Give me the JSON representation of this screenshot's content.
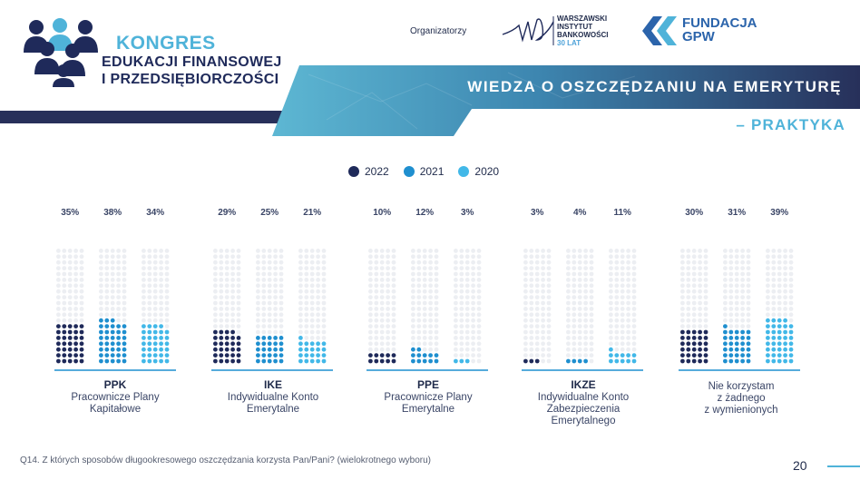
{
  "header": {
    "kongres_title": "KONGRES",
    "kongres_line1": "EDUKACJI FINANSOWEJ",
    "kongres_line2": "I PRZEDSIĘBIORCZOŚCI",
    "organizers_label": "Organizatorzy",
    "wib_line1": "WARSZAWSKI",
    "wib_line2": "INSTYTUT",
    "wib_line3": "BANKOWOŚCI",
    "wib_line4": "30 LAT",
    "gpw_line1": "FUNDACJA",
    "gpw_line2": "GPW",
    "banner_title": "WIEDZA O OSZCZĘDZANIU NA EMERYTURĘ",
    "banner_subtitle": "– PRAKTYKA"
  },
  "colors": {
    "navy": "#1f2a5a",
    "mid_blue": "#1f8fcf",
    "light_blue": "#42b8e8",
    "empty_dot": "#eceef2",
    "banner_dark": "#27305a",
    "accent": "#4fb3d9"
  },
  "chart_data": {
    "type": "waffle",
    "series": [
      {
        "name": "2022",
        "color": "#1f2a5a",
        "values": [
          35,
          29,
          10,
          3,
          30
        ]
      },
      {
        "name": "2021",
        "color": "#1f8fcf",
        "values": [
          38,
          25,
          12,
          4,
          31
        ]
      },
      {
        "name": "2020",
        "color": "#42b8e8",
        "values": [
          34,
          21,
          3,
          11,
          39
        ]
      }
    ],
    "categories": [
      {
        "abbr": "PPK",
        "desc": "Pracownicze Plany\nKapitałowe"
      },
      {
        "abbr": "IKE",
        "desc": "Indywidualne Konto\nEmerytalne"
      },
      {
        "abbr": "PPE",
        "desc": "Pracownicze Plany\nEmerytalne"
      },
      {
        "abbr": "IKZE",
        "desc": "Indywidualne Konto\nZabezpieczenia\nEmerytalnego"
      },
      {
        "abbr": "",
        "desc": "Nie korzystam\nz żadnego\nz wymienionych"
      }
    ],
    "value_labels": [
      [
        "35%",
        "38%",
        "34%"
      ],
      [
        "29%",
        "25%",
        "21%"
      ],
      [
        "10%",
        "12%",
        "3%"
      ],
      [
        "3%",
        "4%",
        "11%"
      ],
      [
        "30%",
        "31%",
        "39%"
      ]
    ],
    "dots_per_column": 100
  },
  "footer": {
    "question": "Q14. Z których sposobów długookresowego oszczędzania korzysta Pan/Pani? (wielokrotnego wyboru)",
    "page_number": "20"
  }
}
